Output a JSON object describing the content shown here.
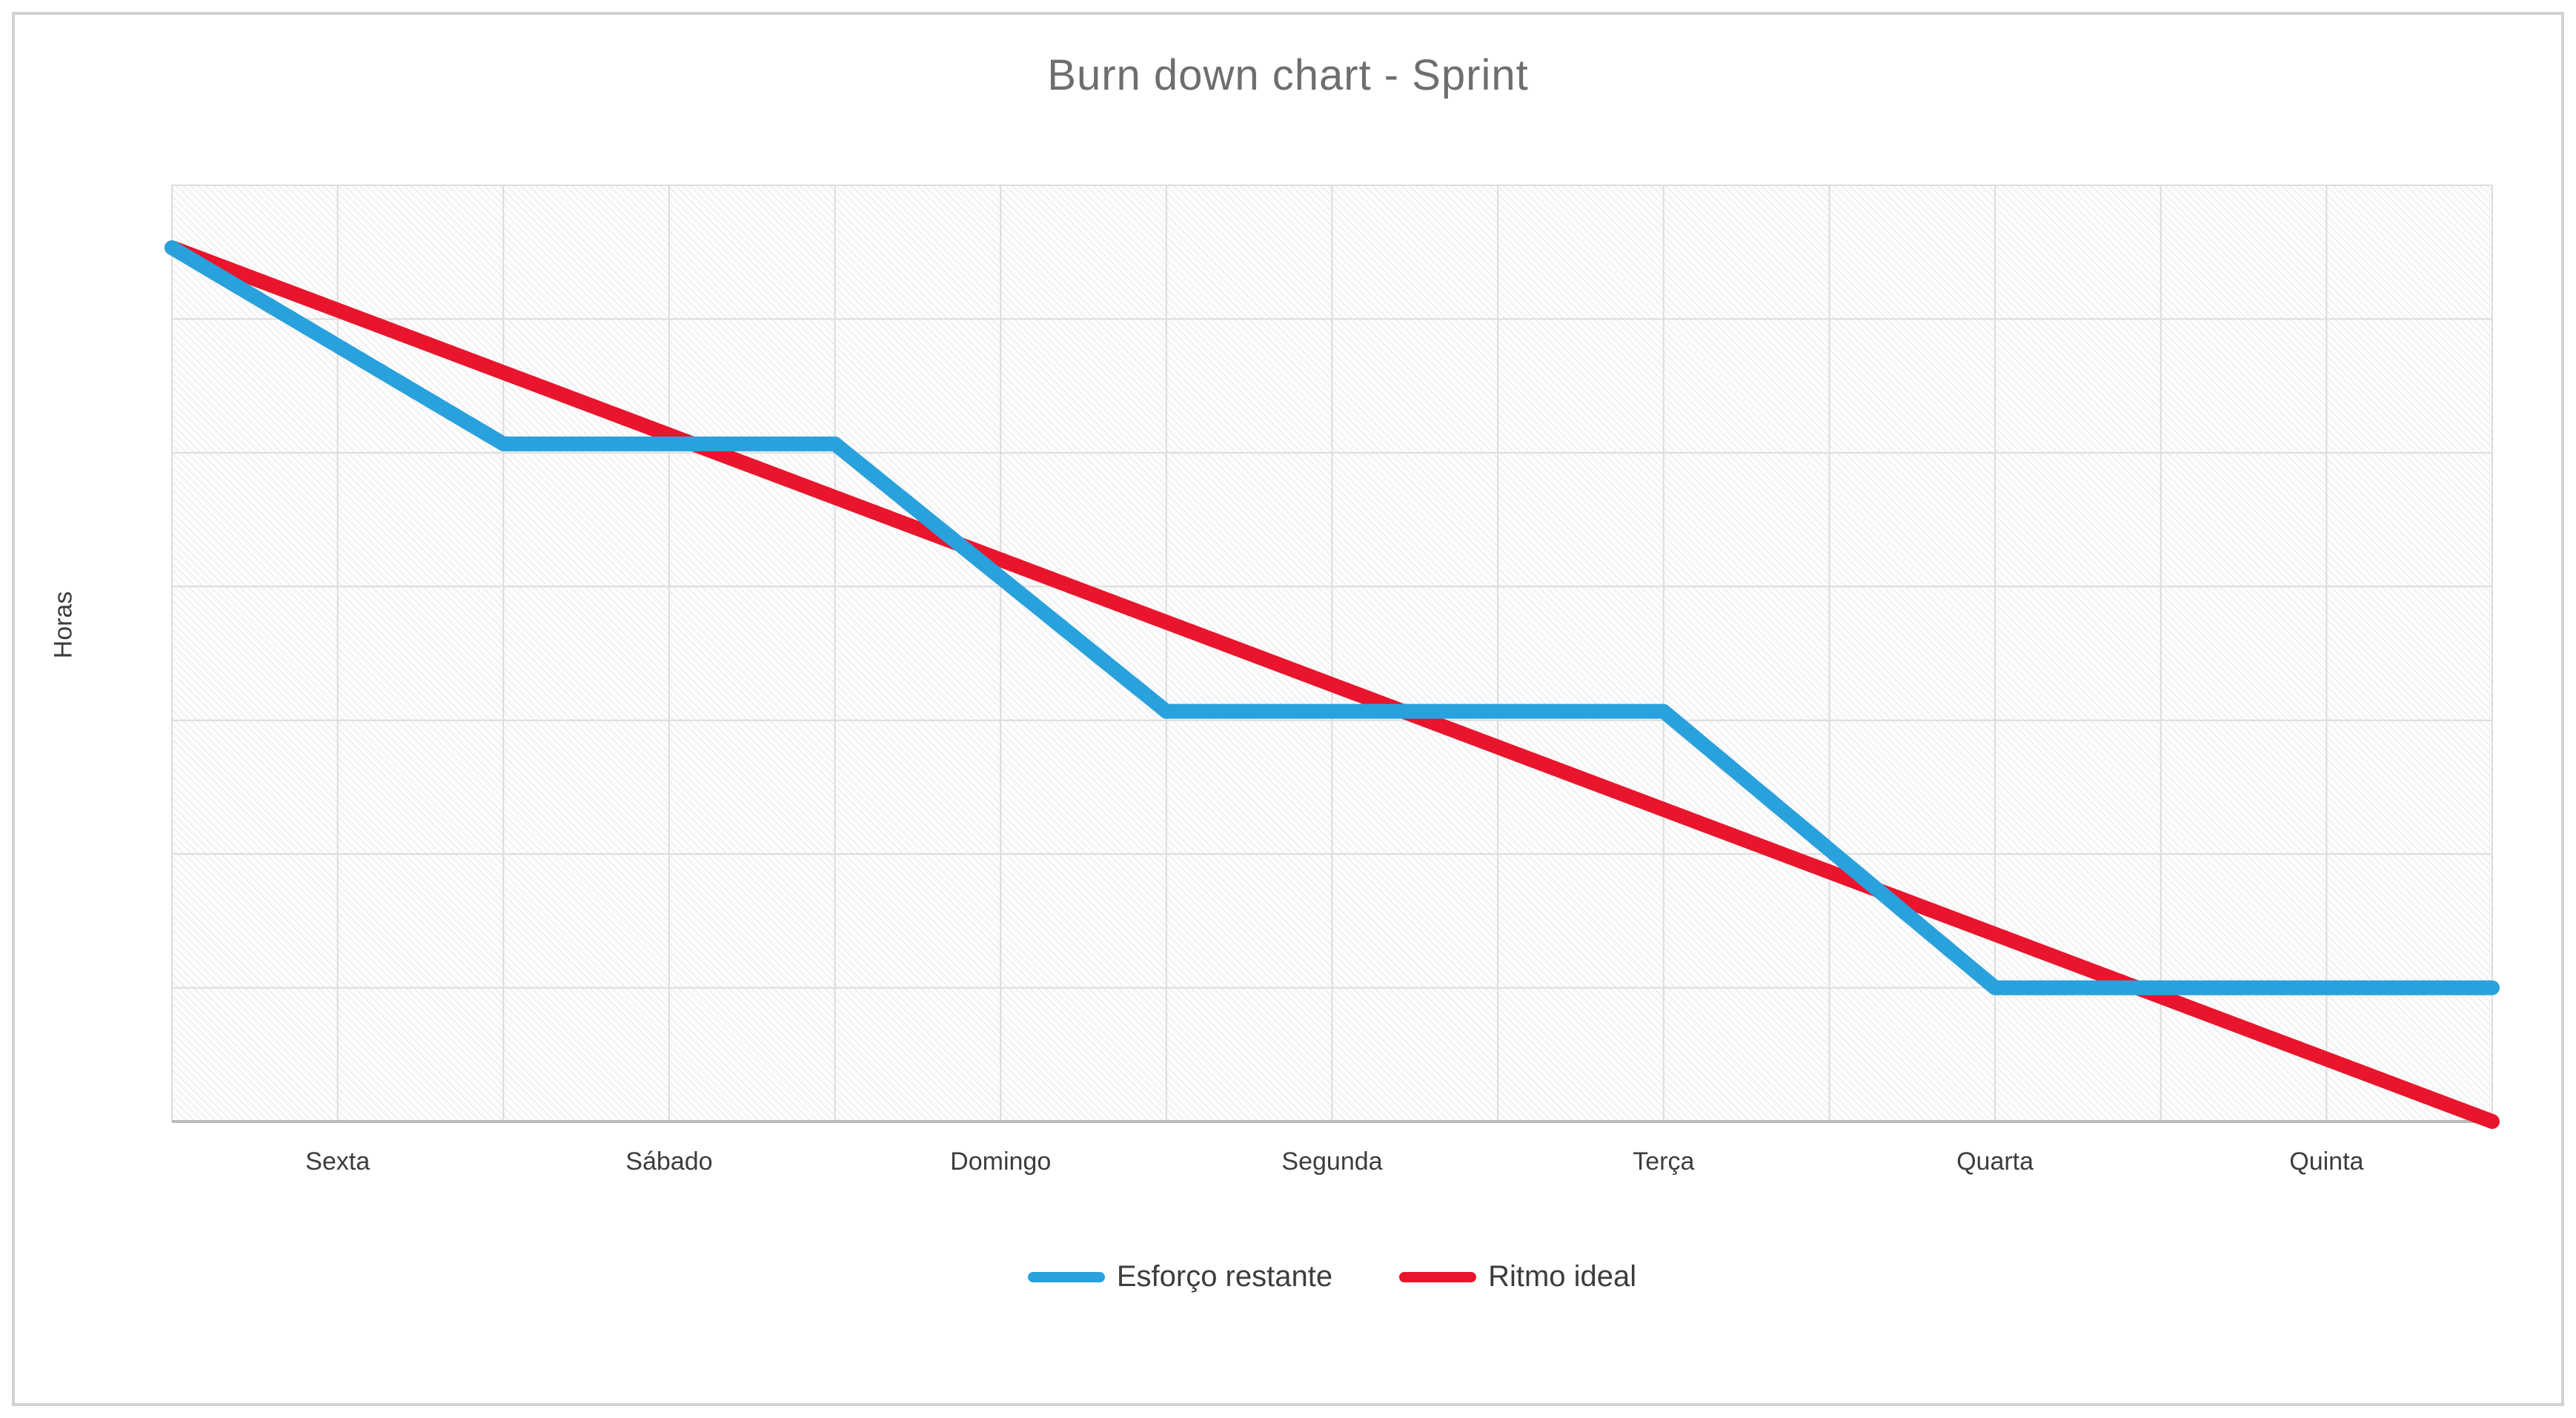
{
  "chart_data": {
    "type": "line",
    "title": "Burn down chart - Sprint",
    "xlabel": "",
    "ylabel": "Horas",
    "categories": [
      "Sexta",
      "Sábado",
      "Domingo",
      "Segunda",
      "Terça",
      "Quarta",
      "Quinta"
    ],
    "x_range_days": [
      0,
      7
    ],
    "x_minor_gridline_step_days": 0.5,
    "ylim": [
      0,
      105
    ],
    "y_major_gridline_step": 15,
    "y_tick_labels_visible": false,
    "grid": true,
    "legend_position": "bottom",
    "series": [
      {
        "name": "Esforço restante",
        "color": "#29A1DC",
        "x_days": [
          0,
          1,
          2,
          3,
          4.5,
          5.5,
          7
        ],
        "values": [
          98,
          76,
          76,
          46,
          46,
          15,
          15
        ]
      },
      {
        "name": "Ritmo ideal",
        "color": "#E8152C",
        "x_days": [
          0,
          7
        ],
        "values": [
          98,
          0
        ]
      }
    ],
    "values_note": "Y axis shows no numeric tick labels in the image; hour values estimated from gridline positions.",
    "colors": {
      "grid": "#dcdcdc",
      "axis_line": "#b9b9b9",
      "title_text": "#6e6e6e",
      "label_text": "#3d3d3d",
      "frame_border": "#d2d2d2",
      "plot_pattern": "light-gray diagonal hatch on white"
    }
  }
}
